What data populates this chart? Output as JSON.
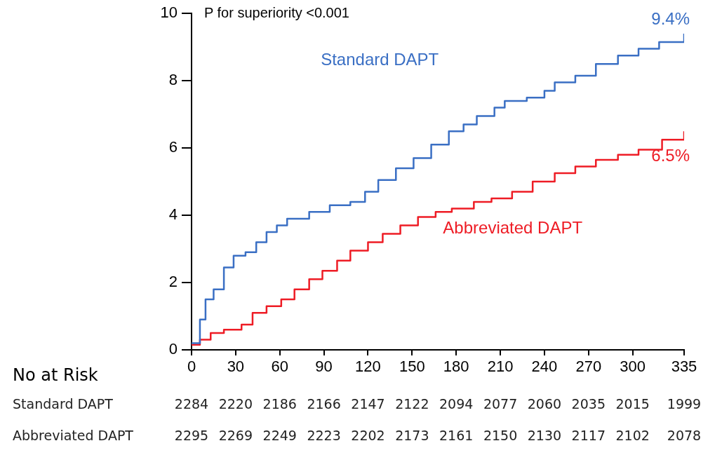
{
  "chart_data": {
    "type": "step",
    "xlim": [
      0,
      335
    ],
    "xticks": [
      0,
      30,
      60,
      90,
      120,
      150,
      180,
      210,
      240,
      270,
      300,
      335
    ],
    "ylim": [
      0,
      10
    ],
    "yticks": [
      0,
      2,
      4,
      6,
      8,
      10
    ],
    "grid": false,
    "legend": false,
    "series": [
      {
        "name": "Standard DAPT",
        "color": "#3a6fc4",
        "x": [
          0,
          5.7,
          9.5,
          15,
          22,
          28.6,
          36.7,
          44,
          51,
          58,
          65,
          80,
          94,
          108,
          118,
          127,
          139,
          151,
          163,
          175,
          185,
          194,
          206,
          213,
          228,
          240,
          247,
          261,
          275,
          290,
          304,
          318,
          335
        ],
        "values": [
          0.2,
          0.9,
          1.5,
          1.8,
          2.45,
          2.8,
          2.9,
          3.2,
          3.5,
          3.7,
          3.9,
          4.1,
          4.3,
          4.4,
          4.7,
          5.05,
          5.4,
          5.7,
          6.1,
          6.5,
          6.7,
          6.95,
          7.2,
          7.4,
          7.5,
          7.7,
          7.95,
          8.15,
          8.5,
          8.75,
          8.95,
          9.15,
          9.4
        ]
      },
      {
        "name": "Abbreviated DAPT",
        "color": "#ee1c25",
        "x": [
          0,
          5.7,
          13,
          22,
          34,
          41.5,
          51,
          61,
          70,
          80,
          89,
          99,
          108,
          120,
          130,
          142,
          154,
          166,
          177,
          192,
          204,
          218,
          232,
          247,
          261,
          275,
          290,
          304,
          320,
          335
        ],
        "values": [
          0.15,
          0.3,
          0.5,
          0.6,
          0.75,
          1.1,
          1.3,
          1.5,
          1.8,
          2.1,
          2.35,
          2.65,
          2.95,
          3.2,
          3.45,
          3.7,
          3.95,
          4.1,
          4.2,
          4.4,
          4.5,
          4.7,
          5.0,
          5.25,
          5.45,
          5.65,
          5.8,
          5.95,
          6.25,
          6.5
        ]
      }
    ],
    "annotations": [
      "P for superiority <0.001",
      {
        "text": "9.4%",
        "x": 335,
        "y": 9.4
      },
      {
        "text": "6.5%",
        "x": 335,
        "y": 6.5
      },
      "No at Risk",
      "Standard DAPT",
      "2284",
      "2220",
      "2186",
      "2166",
      "2147",
      "2122",
      "2094",
      "2077",
      "2060",
      "2035",
      "2015",
      "1999",
      "Abbreviated DAPT",
      "2295",
      "2269",
      "2249",
      "2223",
      "2202",
      "2173",
      "2161",
      "2150",
      "2130",
      "2117",
      "2102",
      "2078"
    ]
  }
}
